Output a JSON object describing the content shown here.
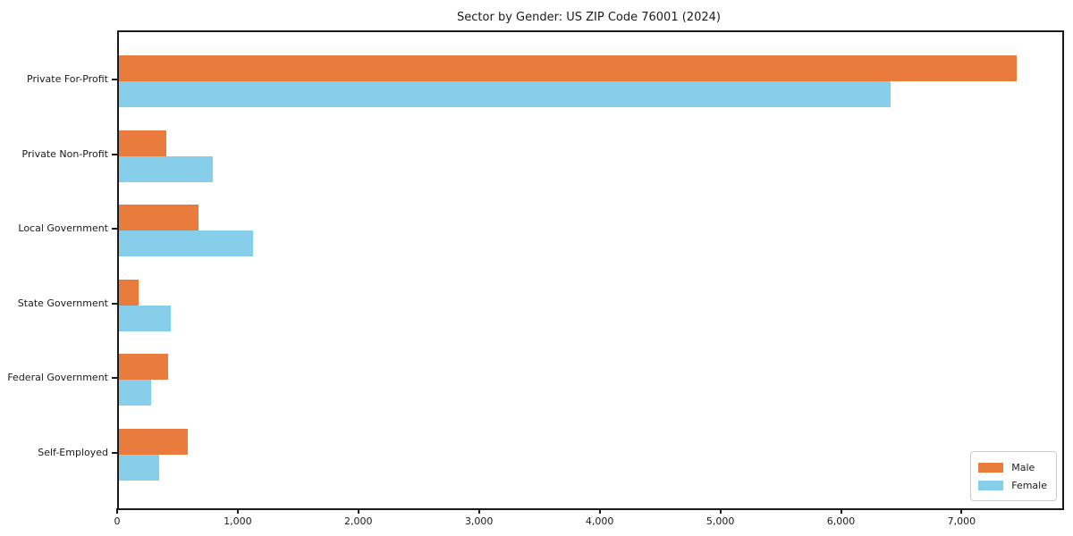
{
  "chart_data": {
    "type": "bar",
    "orientation": "horizontal",
    "title": "Sector by Gender: US ZIP Code 76001 (2024)",
    "xlabel": "",
    "ylabel": "",
    "categories": [
      "Private For-Profit",
      "Private Non-Profit",
      "Local Government",
      "State Government",
      "Federal Government",
      "Self-Employed"
    ],
    "series": [
      {
        "name": "Male",
        "color": "#E97C3C",
        "values": [
          7440,
          390,
          660,
          160,
          410,
          570
        ]
      },
      {
        "name": "Female",
        "color": "#87CEEB",
        "values": [
          6400,
          780,
          1110,
          430,
          270,
          330
        ]
      }
    ],
    "xlim": [
      0,
      7820
    ],
    "xticks": [
      0,
      1000,
      2000,
      3000,
      4000,
      5000,
      6000,
      7000
    ],
    "xtick_labels": [
      "0",
      "1,000",
      "2,000",
      "3,000",
      "4,000",
      "5,000",
      "6,000",
      "7,000"
    ],
    "grid": false,
    "legend_position": "lower right"
  }
}
